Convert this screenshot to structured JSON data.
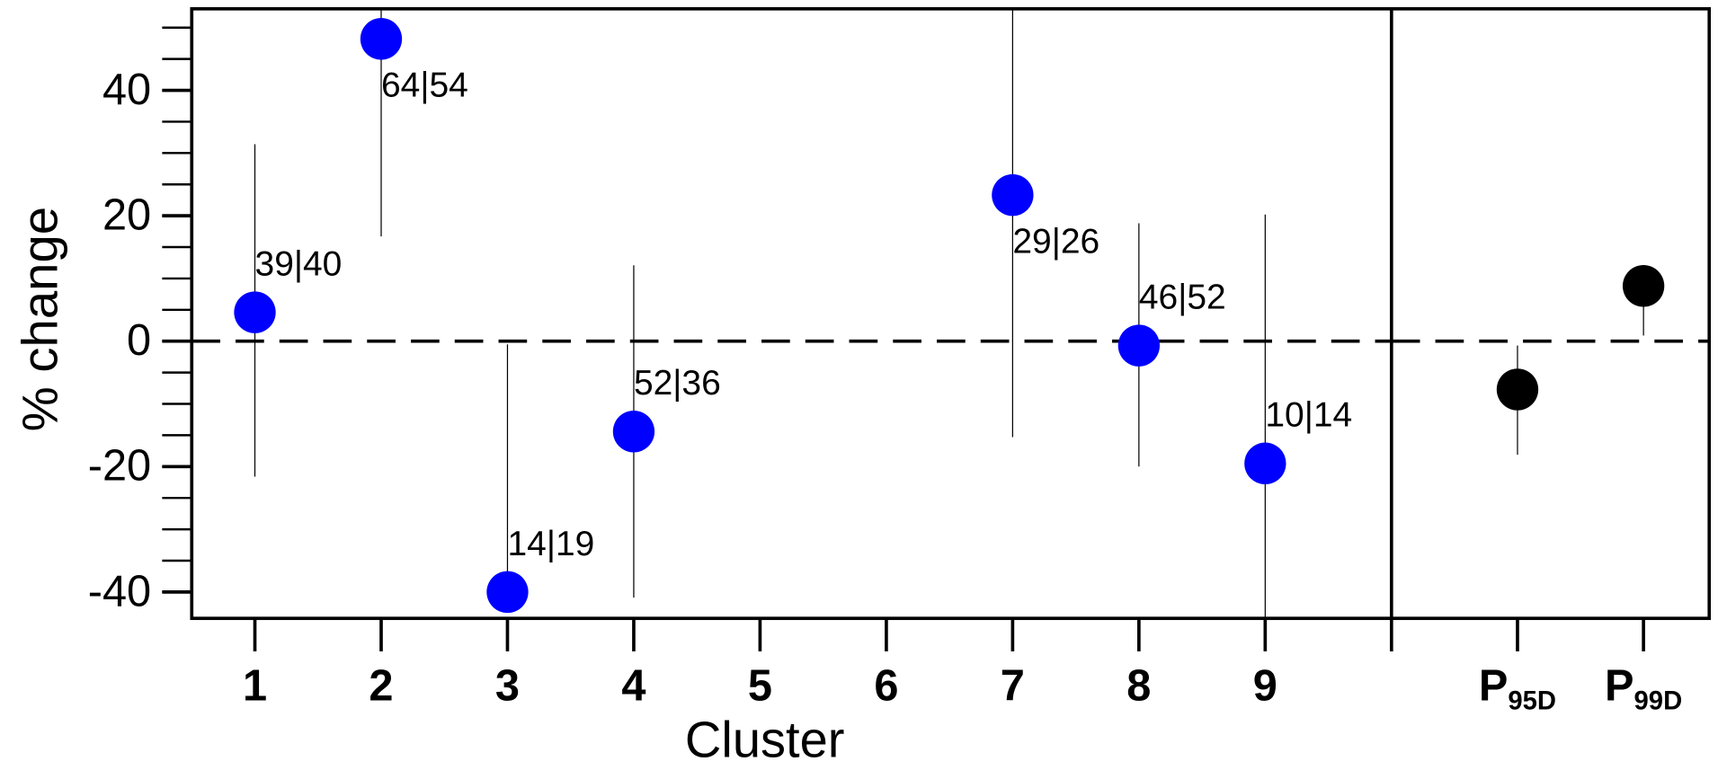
{
  "chart_data": [
    {
      "type": "scatter",
      "xlabel": "Cluster",
      "ylabel": "% change",
      "x": [
        1,
        2,
        3,
        4,
        7,
        8,
        9
      ],
      "values": [
        4.6,
        48.2,
        -40,
        -14.4,
        23.3,
        -0.7,
        -19.5
      ],
      "low": [
        -21.6,
        16.7,
        -40,
        -40.9,
        -15.3,
        -20,
        -44
      ],
      "high": [
        31.4,
        53,
        -0.5,
        12.1,
        53,
        18.8,
        20.2
      ],
      "annotations": [
        "39|40",
        "64|54",
        "14|19",
        "52|36",
        "29|26",
        "46|52",
        "10|14"
      ],
      "color": "#0000ff",
      "xlim": [
        0.5,
        10
      ],
      "xticks": [
        1,
        2,
        3,
        4,
        5,
        6,
        7,
        8,
        9
      ],
      "ylim": [
        -44.2,
        53
      ],
      "yticks": [
        -40,
        -20,
        0,
        20,
        40
      ],
      "yminor": [
        -40,
        -35,
        -30,
        -25,
        -20,
        -15,
        -10,
        -5,
        0,
        5,
        10,
        15,
        20,
        25,
        30,
        35,
        40,
        45,
        50
      ],
      "hline": 0
    },
    {
      "type": "scatter",
      "categories": [
        "P",
        "P"
      ],
      "subscripts": [
        "95D",
        "99D"
      ],
      "values": [
        -7.7,
        8.8
      ],
      "low": [
        -18.1,
        0.9
      ],
      "high": [
        -0.7,
        12.1
      ],
      "color": "#000000",
      "ylim": [
        -44.2,
        53
      ],
      "hline": 0
    }
  ]
}
